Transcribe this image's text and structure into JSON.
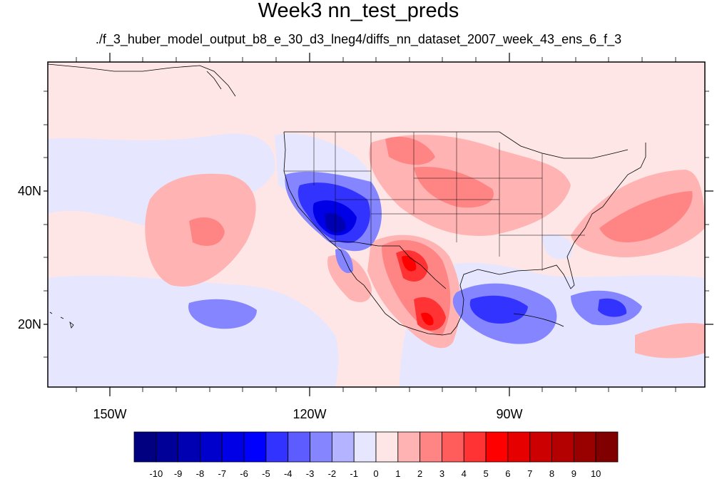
{
  "title": "Week3 nn_test_preds",
  "subtitle": "./f_3_huber_model_output_b8_e_30_d3_lneg4/diffs_nn_dataset_2007_week_43_ens_6_f_3",
  "map": {
    "lon_labels": [
      "150W",
      "120W",
      "90W"
    ],
    "lat_labels": [
      "40N",
      "20N"
    ]
  },
  "colorbar": {
    "labels": [
      "-10",
      "-9",
      "-8",
      "-7",
      "-6",
      "-5",
      "-4",
      "-3",
      "-2",
      "-1",
      "0",
      "1",
      "2",
      "3",
      "4",
      "5",
      "6",
      "7",
      "8",
      "9",
      "10"
    ],
    "colors": [
      "#000080",
      "#000099",
      "#0000b3",
      "#0000cc",
      "#0000e6",
      "#0000ff",
      "#3333ff",
      "#5c5cff",
      "#8585ff",
      "#b3b3ff",
      "#e6e6ff",
      "#ffe6e6",
      "#ffb3b3",
      "#ff8585",
      "#ff5c5c",
      "#ff3333",
      "#ff0000",
      "#e60000",
      "#cc0000",
      "#b30000",
      "#990000",
      "#800000"
    ]
  }
}
